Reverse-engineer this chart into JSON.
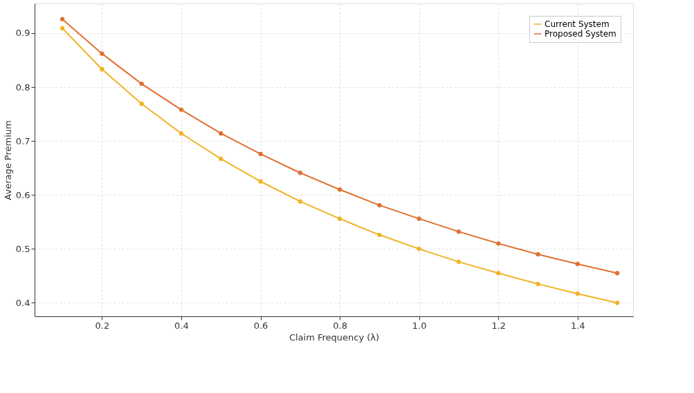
{
  "chart_data": {
    "type": "line",
    "xlabel": "Claim Frequency (λ)",
    "ylabel": "Average Premium",
    "x": [
      0.1,
      0.2,
      0.3,
      0.4,
      0.5,
      0.6,
      0.7,
      0.8,
      0.9,
      1.0,
      1.1,
      1.2,
      1.3,
      1.4,
      1.5
    ],
    "series": [
      {
        "name": "Current System",
        "color": "#f0b323",
        "values": [
          0.909,
          0.833,
          0.769,
          0.714,
          0.667,
          0.625,
          0.588,
          0.556,
          0.526,
          0.5,
          0.476,
          0.455,
          0.435,
          0.417,
          0.4
        ]
      },
      {
        "name": "Proposed System",
        "color": "#e07030",
        "values": [
          0.926,
          0.862,
          0.806,
          0.758,
          0.714,
          0.676,
          0.641,
          0.61,
          0.581,
          0.556,
          0.532,
          0.51,
          0.49,
          0.472,
          0.455
        ]
      }
    ],
    "xlim": [
      0.03,
      1.54
    ],
    "ylim": [
      0.375,
      0.955
    ],
    "xticks": [
      {
        "value": 0.2,
        "label": "0.2"
      },
      {
        "value": 0.4,
        "label": "0.4"
      },
      {
        "value": 0.6,
        "label": "0.6"
      },
      {
        "value": 0.8,
        "label": "0.8"
      },
      {
        "value": 1.0,
        "label": "1.0"
      },
      {
        "value": 1.2,
        "label": "1.2"
      },
      {
        "value": 1.4,
        "label": "1.4"
      }
    ],
    "yticks": [
      0.4,
      0.5,
      0.6,
      0.7,
      0.8,
      0.9
    ],
    "grid": true,
    "legend": "top right",
    "marker": "circle",
    "line_style": "solid"
  }
}
